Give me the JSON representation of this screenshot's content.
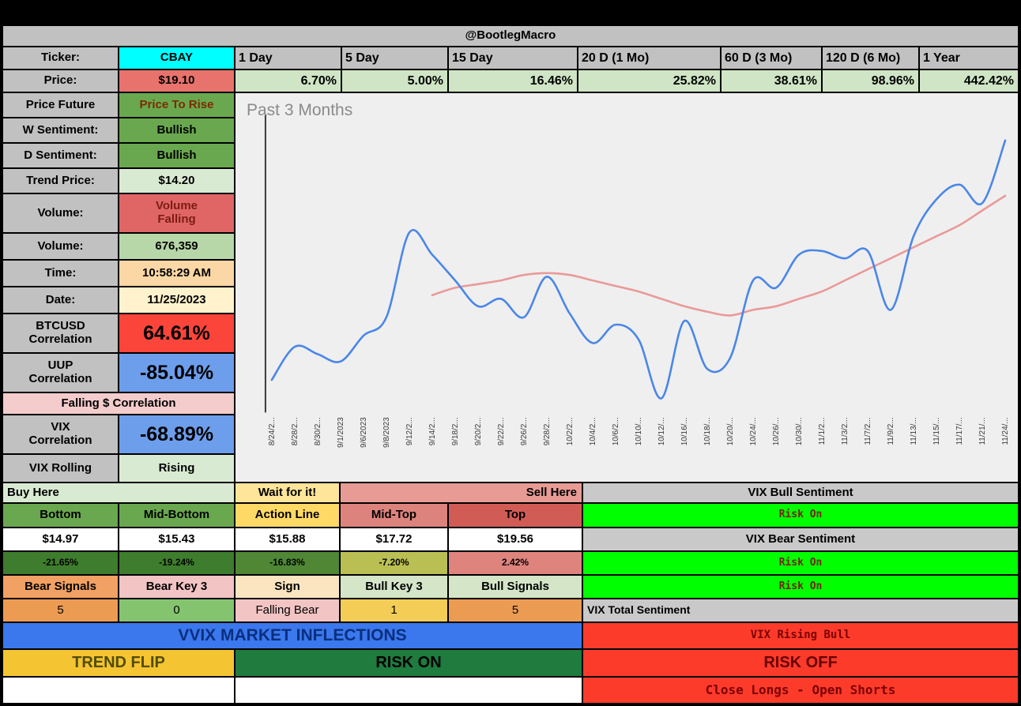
{
  "header": {
    "handle": "@BootlegMacro"
  },
  "summary": {
    "ticker_label": "Ticker:",
    "ticker_value": "CBAY",
    "price_label": "Price:",
    "price_value": "$19.10",
    "periods": [
      {
        "label": "1 Day",
        "change": "6.70%"
      },
      {
        "label": "5 Day",
        "change": "5.00%"
      },
      {
        "label": "15 Day",
        "change": "16.46%"
      },
      {
        "label": "20 D (1 Mo)",
        "change": "25.82%"
      },
      {
        "label": "60 D (3 Mo)",
        "change": "38.61%"
      },
      {
        "label": "120 D (6 Mo)",
        "change": "98.96%"
      },
      {
        "label": "1 Year",
        "change": "442.42%"
      }
    ]
  },
  "left_panel": {
    "rows": [
      {
        "label": "Price Future",
        "value": "Price To Rise"
      },
      {
        "label": "W Sentiment:",
        "value": "Bullish"
      },
      {
        "label": "D Sentiment:",
        "value": "Bullish"
      },
      {
        "label": "Trend Price:",
        "value": "$14.20"
      },
      {
        "label": "Volume:",
        "value": "Volume Falling"
      },
      {
        "label": "Volume:",
        "value": "676,359"
      },
      {
        "label": "Time:",
        "value": "10:58:29 AM"
      },
      {
        "label": "Date:",
        "value": "11/25/2023"
      },
      {
        "label": "BTCUSD Correlation",
        "value": "64.61%"
      },
      {
        "label": "UUP Correlation",
        "value": "-85.04%"
      },
      {
        "banner": "Falling $ Correlation"
      },
      {
        "label": "VIX Correlation",
        "value": "-68.89%"
      },
      {
        "label": "VIX Rolling",
        "value": "Rising"
      }
    ]
  },
  "chart_data": {
    "type": "line",
    "title": "Past 3 Months",
    "ylim": [
      11.8,
      19.7
    ],
    "grid": false,
    "legend": "none",
    "x_labels": [
      "8/24/2...",
      "8/28/2...",
      "8/30/2...",
      "9/1/2023",
      "9/6/2023",
      "9/8/2023",
      "9/12/2...",
      "9/14/2...",
      "9/18/2...",
      "9/20/2...",
      "9/22/2...",
      "9/26/2...",
      "9/28/2...",
      "10/2/2...",
      "10/4/2...",
      "10/6/2...",
      "10/10/...",
      "10/12/...",
      "10/16/...",
      "10/18/...",
      "10/20/...",
      "10/24/...",
      "10/26/...",
      "10/30/...",
      "11/1/2...",
      "11/3/2...",
      "11/7/2...",
      "11/9/2...",
      "11/13/...",
      "11/15/...",
      "11/17/...",
      "11/21/...",
      "11/24/..."
    ],
    "series": [
      {
        "name": "Price",
        "color": "#4a86e8",
        "values": [
          12.6,
          13.5,
          13.3,
          13.1,
          13.8,
          14.3,
          16.6,
          16.0,
          15.3,
          14.6,
          14.8,
          14.3,
          15.4,
          14.4,
          13.6,
          14.1,
          13.7,
          12.1,
          14.2,
          12.9,
          13.2,
          15.3,
          15.1,
          16.0,
          16.1,
          15.9,
          16.1,
          14.5,
          16.5,
          17.5,
          17.9,
          17.4,
          19.1
        ]
      },
      {
        "name": "Trend",
        "color": "#ea9999",
        "values": [
          null,
          null,
          null,
          null,
          null,
          null,
          null,
          14.9,
          15.1,
          15.2,
          15.3,
          15.45,
          15.5,
          15.45,
          15.3,
          15.15,
          15.0,
          14.8,
          14.6,
          14.45,
          14.35,
          14.5,
          14.6,
          14.8,
          15.0,
          15.3,
          15.6,
          15.9,
          16.2,
          16.5,
          16.8,
          17.2,
          17.6
        ]
      }
    ]
  },
  "zones": {
    "buy_here": "Buy Here",
    "wait_for_it": "Wait for it!",
    "sell_here": "Sell Here",
    "levels": [
      {
        "name": "Bottom",
        "price": "$14.97",
        "pct": "-21.65%"
      },
      {
        "name": "Mid-Bottom",
        "price": "$15.43",
        "pct": "-19.24%"
      },
      {
        "name": "Action Line",
        "price": "$15.88",
        "pct": "-16.83%"
      },
      {
        "name": "Mid-Top",
        "price": "$17.72",
        "pct": "-7.20%"
      },
      {
        "name": "Top",
        "price": "$19.56",
        "pct": "2.42%"
      }
    ],
    "signals": [
      {
        "name": "Bear Signals",
        "value": "5"
      },
      {
        "name": "Bear Key 3",
        "value": "0"
      },
      {
        "name": "Sign",
        "value": "Falling Bear"
      },
      {
        "name": "Bull Key 3",
        "value": "1"
      },
      {
        "name": "Bull Signals",
        "value": "5"
      }
    ]
  },
  "vix_panel": {
    "bull_title": "VIX Bull Sentiment",
    "bull_status": "Risk On",
    "bear_title": "VIX Bear Sentiment",
    "bear_status": "Risk On",
    "signal_status": "Risk On",
    "total_title": "VIX Total Sentiment",
    "total_status": "VIX Rising Bull",
    "risk_off_label": "RISK OFF",
    "action_label": "Close Longs - Open Shorts"
  },
  "footer": {
    "vvix_label": "VVIX MARKET INFLECTIONS",
    "trend_flip_label": "TREND FLIP",
    "risk_on_label": "RISK ON"
  },
  "colors": {
    "risk_on_green": "#00ff00",
    "alert_red": "#fd3b2b",
    "inflection_blue": "#3b78ed",
    "ticker_cyan": "#00ffff",
    "price_line_blue": "#4a86e8",
    "trend_line_pink": "#ea9999"
  }
}
